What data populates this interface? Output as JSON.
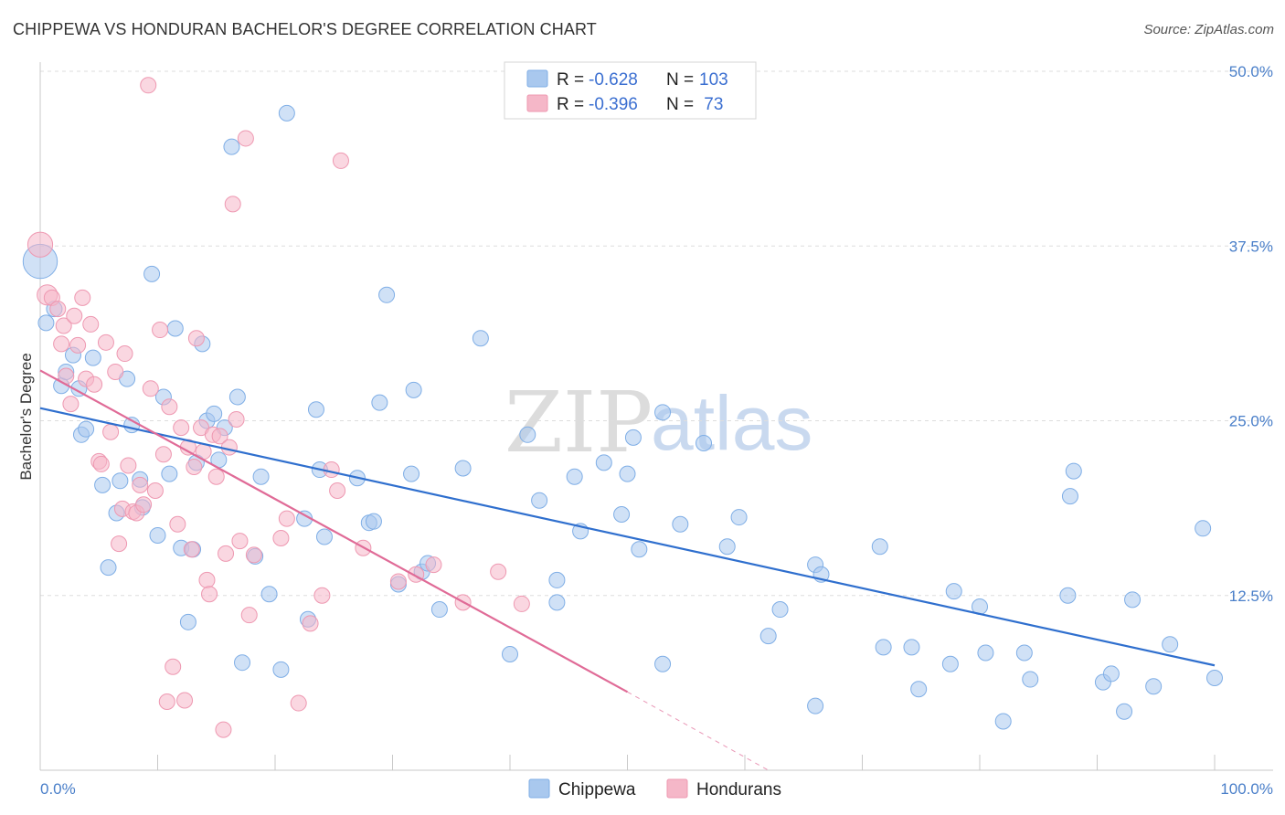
{
  "title": "CHIPPEWA VS HONDURAN BACHELOR'S DEGREE CORRELATION CHART",
  "source": "Source: ZipAtlas.com",
  "watermark": {
    "zip": "ZIP",
    "atlas": "atlas"
  },
  "legend": {
    "rows": [
      {
        "r_label": "R = ",
        "r_value": "-0.628",
        "n_label": "N = ",
        "n_value": "103",
        "color": "#a9c8ee"
      },
      {
        "r_label": "R = ",
        "r_value": "-0.396",
        "n_label": "N = ",
        "n_value": " 73",
        "color": "#f5b7c8"
      }
    ]
  },
  "chart_data": {
    "type": "scatter",
    "title": "CHIPPEWA VS HONDURAN BACHELOR'S DEGREE CORRELATION CHART",
    "xlabel": "",
    "ylabel": "Bachelor's Degree",
    "xlim": [
      0,
      100
    ],
    "ylim": [
      0,
      50
    ],
    "x_tick_labels": [
      "0.0%",
      "100.0%"
    ],
    "y_ticks": [
      12.5,
      25.0,
      37.5,
      50.0
    ],
    "y_tick_labels": [
      "12.5%",
      "25.0%",
      "37.5%",
      "50.0%"
    ],
    "grid": true,
    "legend_position": "top-center",
    "series": [
      {
        "name": "Chippewa",
        "color": "#a9c8ee",
        "line_color": "#2f6fce",
        "trend": {
          "x": [
            0,
            100
          ],
          "y": [
            25.9,
            7.5
          ]
        },
        "points": [
          [
            0.0,
            36.4,
            2.2
          ],
          [
            0.5,
            32.0,
            1
          ],
          [
            1.2,
            33.0,
            1
          ],
          [
            1.8,
            27.5,
            1
          ],
          [
            2.2,
            28.5,
            1
          ],
          [
            2.8,
            29.7,
            1
          ],
          [
            3.3,
            27.3,
            1
          ],
          [
            3.5,
            24.0,
            1
          ],
          [
            3.9,
            24.4,
            1
          ],
          [
            4.5,
            29.5,
            1
          ],
          [
            5.3,
            20.4,
            1
          ],
          [
            5.8,
            14.5,
            1
          ],
          [
            6.5,
            18.4,
            1
          ],
          [
            6.8,
            20.7,
            1
          ],
          [
            7.4,
            28.0,
            1
          ],
          [
            7.8,
            24.7,
            1
          ],
          [
            8.5,
            20.8,
            1
          ],
          [
            8.7,
            18.8,
            1
          ],
          [
            9.5,
            35.5,
            1
          ],
          [
            10.0,
            16.8,
            1
          ],
          [
            10.5,
            26.7,
            1
          ],
          [
            11.0,
            21.2,
            1
          ],
          [
            11.5,
            31.6,
            1
          ],
          [
            12.0,
            15.9,
            1
          ],
          [
            12.6,
            10.6,
            1
          ],
          [
            13.0,
            15.8,
            1
          ],
          [
            13.3,
            22.0,
            1
          ],
          [
            13.8,
            30.5,
            1
          ],
          [
            14.2,
            25.0,
            1
          ],
          [
            14.8,
            25.5,
            1
          ],
          [
            15.2,
            22.2,
            1
          ],
          [
            15.7,
            24.5,
            1
          ],
          [
            16.3,
            44.6,
            1
          ],
          [
            16.8,
            26.7,
            1
          ],
          [
            17.2,
            7.7,
            1
          ],
          [
            18.3,
            15.3,
            1
          ],
          [
            18.8,
            21.0,
            1
          ],
          [
            19.5,
            12.6,
            1
          ],
          [
            20.5,
            7.2,
            1
          ],
          [
            21.0,
            47.0,
            1
          ],
          [
            22.5,
            18.0,
            1
          ],
          [
            22.8,
            10.8,
            1
          ],
          [
            23.5,
            25.8,
            1
          ],
          [
            23.8,
            21.5,
            1
          ],
          [
            24.2,
            16.7,
            1
          ],
          [
            27.0,
            20.9,
            1
          ],
          [
            28.0,
            17.7,
            1
          ],
          [
            28.4,
            17.8,
            1
          ],
          [
            28.9,
            26.3,
            1
          ],
          [
            29.5,
            34.0,
            1
          ],
          [
            30.5,
            13.3,
            1
          ],
          [
            31.6,
            21.2,
            1
          ],
          [
            31.8,
            27.2,
            1
          ],
          [
            32.5,
            14.2,
            1
          ],
          [
            33.0,
            14.8,
            1
          ],
          [
            34.0,
            11.5,
            1
          ],
          [
            36.0,
            21.6,
            1
          ],
          [
            37.5,
            30.9,
            1
          ],
          [
            40.0,
            8.3,
            1
          ],
          [
            41.5,
            24.0,
            1
          ],
          [
            42.5,
            19.3,
            1
          ],
          [
            44.0,
            13.6,
            1
          ],
          [
            44.0,
            12.0,
            1
          ],
          [
            45.5,
            21.0,
            1
          ],
          [
            46.0,
            17.1,
            1
          ],
          [
            48.0,
            22.0,
            1
          ],
          [
            49.5,
            18.3,
            1
          ],
          [
            50.0,
            21.2,
            1
          ],
          [
            50.5,
            23.8,
            1
          ],
          [
            51.0,
            15.8,
            1
          ],
          [
            53.0,
            25.6,
            1
          ],
          [
            53.0,
            7.6,
            1
          ],
          [
            54.5,
            17.6,
            1
          ],
          [
            56.5,
            23.4,
            1
          ],
          [
            58.5,
            16.0,
            1
          ],
          [
            59.5,
            18.1,
            1
          ],
          [
            62.0,
            9.6,
            1
          ],
          [
            63.0,
            11.5,
            1
          ],
          [
            66.0,
            4.6,
            1
          ],
          [
            66.0,
            14.7,
            1
          ],
          [
            66.5,
            14.0,
            1
          ],
          [
            71.5,
            16.0,
            1
          ],
          [
            71.8,
            8.8,
            1
          ],
          [
            74.2,
            8.8,
            1
          ],
          [
            74.8,
            5.8,
            1
          ],
          [
            77.5,
            7.6,
            1
          ],
          [
            77.8,
            12.8,
            1
          ],
          [
            80.0,
            11.7,
            1
          ],
          [
            80.5,
            8.4,
            1
          ],
          [
            82.0,
            3.5,
            1
          ],
          [
            83.8,
            8.4,
            1
          ],
          [
            84.3,
            6.5,
            1
          ],
          [
            87.5,
            12.5,
            1
          ],
          [
            87.7,
            19.6,
            1
          ],
          [
            88.0,
            21.4,
            1
          ],
          [
            90.5,
            6.3,
            1
          ],
          [
            91.2,
            6.9,
            1
          ],
          [
            92.3,
            4.2,
            1
          ],
          [
            93.0,
            12.2,
            1
          ],
          [
            94.8,
            6.0,
            1
          ],
          [
            96.2,
            9.0,
            1
          ],
          [
            99.0,
            17.3,
            1
          ],
          [
            100.0,
            6.6,
            1
          ]
        ]
      },
      {
        "name": "Hondurans",
        "color": "#f5b7c8",
        "line_color": "#e06b97",
        "trend": {
          "x": [
            0,
            50
          ],
          "y": [
            28.6,
            5.6
          ]
        },
        "trend_dashed": {
          "x": [
            50,
            62
          ],
          "y": [
            5.6,
            0.0
          ]
        },
        "points": [
          [
            0.0,
            37.6,
            1.6
          ],
          [
            0.6,
            34.0,
            1.3
          ],
          [
            1.0,
            33.8,
            1
          ],
          [
            1.5,
            33.0,
            1
          ],
          [
            1.8,
            30.5,
            1
          ],
          [
            2.0,
            31.8,
            1
          ],
          [
            2.2,
            28.2,
            1
          ],
          [
            2.6,
            26.2,
            1
          ],
          [
            2.9,
            32.5,
            1
          ],
          [
            3.2,
            30.4,
            1
          ],
          [
            3.6,
            33.8,
            1
          ],
          [
            3.9,
            28.0,
            1
          ],
          [
            4.3,
            31.9,
            1
          ],
          [
            4.6,
            27.6,
            1
          ],
          [
            5.0,
            22.1,
            1
          ],
          [
            5.2,
            21.9,
            1
          ],
          [
            5.6,
            30.6,
            1
          ],
          [
            6.0,
            24.2,
            1
          ],
          [
            6.4,
            28.5,
            1
          ],
          [
            6.7,
            16.2,
            1
          ],
          [
            7.0,
            18.7,
            1
          ],
          [
            7.2,
            29.8,
            1
          ],
          [
            7.5,
            21.8,
            1
          ],
          [
            7.9,
            18.5,
            1
          ],
          [
            8.2,
            18.4,
            1
          ],
          [
            8.5,
            20.4,
            1
          ],
          [
            8.8,
            19.0,
            1
          ],
          [
            9.2,
            49.0,
            1
          ],
          [
            9.4,
            27.3,
            1
          ],
          [
            9.8,
            20.0,
            1
          ],
          [
            10.2,
            31.5,
            1
          ],
          [
            10.5,
            22.6,
            1
          ],
          [
            10.8,
            4.9,
            1
          ],
          [
            11.0,
            26.0,
            1
          ],
          [
            11.3,
            7.4,
            1
          ],
          [
            11.7,
            17.6,
            1
          ],
          [
            12.0,
            24.5,
            1
          ],
          [
            12.3,
            5.0,
            1
          ],
          [
            12.6,
            23.1,
            1
          ],
          [
            12.9,
            15.8,
            1
          ],
          [
            13.1,
            21.7,
            1
          ],
          [
            13.3,
            30.9,
            1
          ],
          [
            13.7,
            24.5,
            1
          ],
          [
            13.9,
            22.8,
            1
          ],
          [
            14.2,
            13.6,
            1
          ],
          [
            14.4,
            12.6,
            1
          ],
          [
            14.7,
            24.0,
            1
          ],
          [
            15.0,
            21.0,
            1
          ],
          [
            15.3,
            23.9,
            1
          ],
          [
            15.6,
            2.9,
            1
          ],
          [
            15.8,
            15.5,
            1
          ],
          [
            16.1,
            23.1,
            1
          ],
          [
            16.4,
            40.5,
            1
          ],
          [
            16.7,
            25.1,
            1
          ],
          [
            17.0,
            16.4,
            1
          ],
          [
            17.5,
            45.2,
            1
          ],
          [
            17.8,
            11.1,
            1
          ],
          [
            18.2,
            15.4,
            1
          ],
          [
            20.5,
            16.6,
            1
          ],
          [
            21.0,
            18.0,
            1
          ],
          [
            22.0,
            4.8,
            1
          ],
          [
            23.0,
            10.5,
            1
          ],
          [
            24.0,
            12.5,
            1
          ],
          [
            24.8,
            21.5,
            1
          ],
          [
            25.3,
            20.0,
            1
          ],
          [
            25.6,
            43.6,
            1
          ],
          [
            27.5,
            15.9,
            1
          ],
          [
            30.5,
            13.5,
            1
          ],
          [
            32.0,
            14.0,
            1
          ],
          [
            33.5,
            14.7,
            1
          ],
          [
            36.0,
            12.0,
            1
          ],
          [
            39.0,
            14.2,
            1
          ],
          [
            41.0,
            11.9,
            1
          ]
        ]
      }
    ]
  },
  "bottom_legend": [
    {
      "label": "Chippewa",
      "color": "#a9c8ee"
    },
    {
      "label": "Hondurans",
      "color": "#f5b7c8"
    }
  ]
}
